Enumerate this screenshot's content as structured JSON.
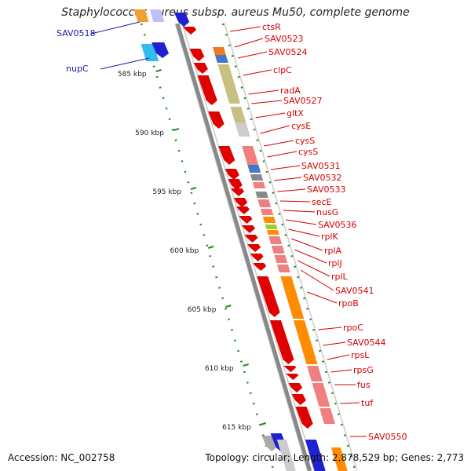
{
  "title": "Staphylococcus aureus subsp. aureus Mu50, complete genome",
  "footer": {
    "accession": "Accession: NC_002758",
    "topology": "Topology: circular; Length: 2,878,529 bp; Genes: 2,773"
  },
  "colors": {
    "label_red": "#d40000",
    "label_blue": "#1a1aa8",
    "forward_strand": "#2020d0",
    "reverse_strand": "#e00000",
    "ruler_ticks": "#228b22",
    "backbone": "#888888"
  },
  "ruler": {
    "ticks": [
      "585 kbp",
      "590 kbp",
      "595 kbp",
      "600 kbp",
      "605 kbp",
      "610 kbp",
      "615 kbp"
    ]
  },
  "blue_labels": [
    "SAV0518",
    "nupC"
  ],
  "red_labels": [
    "ctsR",
    "SAV0523",
    "SAV0524",
    "clpC",
    "radA",
    "SAV0527",
    "gltX",
    "cysE",
    "cysS",
    "cysS",
    "SAV0531",
    "SAV0532",
    "SAV0533",
    "secE",
    "nusG",
    "SAV0536",
    "rplK",
    "rplA",
    "rplJ",
    "rplL",
    "SAV0541",
    "rpoB",
    "rpoC",
    "SAV0544",
    "rpsL",
    "rpsG",
    "fus",
    "tuf",
    "SAV0550"
  ]
}
